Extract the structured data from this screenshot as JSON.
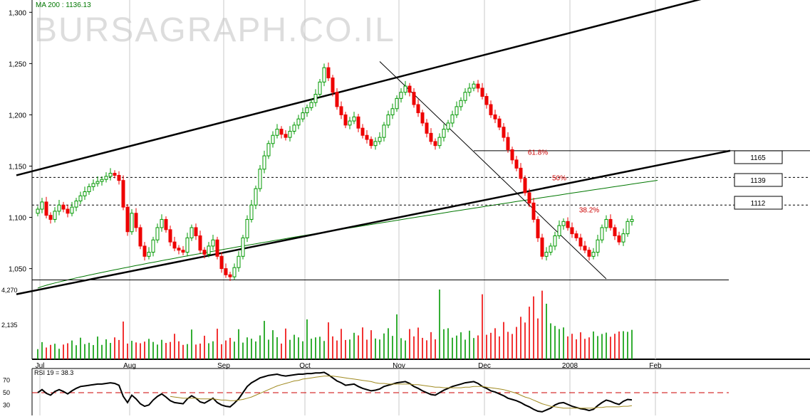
{
  "watermark": "BURSAGRAPH.CO.IL",
  "ma_label": "MA 200 : 1136.13",
  "volume_axis_labels": [
    "4,270",
    "2,135"
  ],
  "rsi_label": "RSI 19 = 38.3",
  "rsi_axis_labels": [
    "70",
    "50",
    "30"
  ],
  "fib_labels": [
    "61.8%",
    "50%",
    "38.2%"
  ],
  "level_boxes": [
    "1165",
    "1139",
    "1112"
  ],
  "colors": {
    "up": "#009900",
    "down": "#ee0000",
    "ma": "#007700",
    "grid": "#c8c8c8",
    "rsi_ma": "#a08a20",
    "rsi_mid": "#cc0000"
  },
  "chart_data": {
    "type": "candlestick",
    "y_axis_ticks": [
      1050,
      1100,
      1150,
      1200,
      1250,
      1300
    ],
    "y_tick_labels": [
      "1,050",
      "1,100",
      "1,150",
      "1,200",
      "1,250",
      "1,300"
    ],
    "ylim": [
      1031,
      1312
    ],
    "x_tick_labels": [
      "Jul",
      "Aug",
      "Sep",
      "Oct",
      "Nov",
      "Dec",
      "2008",
      "Feb"
    ],
    "month_start_index": [
      0,
      21,
      43,
      62,
      84,
      104,
      124,
      144
    ],
    "closes": [
      1108,
      1115,
      1102,
      1098,
      1106,
      1112,
      1108,
      1104,
      1110,
      1116,
      1121,
      1125,
      1130,
      1133,
      1135,
      1137,
      1140,
      1143,
      1141,
      1136,
      1110,
      1086,
      1104,
      1090,
      1072,
      1062,
      1066,
      1078,
      1090,
      1098,
      1088,
      1076,
      1070,
      1068,
      1066,
      1080,
      1090,
      1082,
      1068,
      1064,
      1072,
      1078,
      1062,
      1050,
      1044,
      1042,
      1051,
      1062,
      1080,
      1098,
      1112,
      1128,
      1147,
      1160,
      1172,
      1180,
      1186,
      1181,
      1178,
      1184,
      1190,
      1196,
      1202,
      1207,
      1212,
      1220,
      1232,
      1246,
      1236,
      1222,
      1208,
      1200,
      1190,
      1194,
      1198,
      1187,
      1180,
      1176,
      1170,
      1174,
      1178,
      1190,
      1200,
      1206,
      1216,
      1222,
      1228,
      1222,
      1210,
      1202,
      1192,
      1182,
      1174,
      1170,
      1178,
      1186,
      1192,
      1200,
      1208,
      1214,
      1222,
      1226,
      1230,
      1226,
      1218,
      1210,
      1200,
      1196,
      1188,
      1178,
      1166,
      1156,
      1148,
      1138,
      1124,
      1114,
      1098,
      1080,
      1062,
      1066,
      1072,
      1082,
      1092,
      1096,
      1090,
      1084,
      1080,
      1072,
      1068,
      1062,
      1066,
      1078,
      1090,
      1098,
      1090,
      1082,
      1076,
      1084,
      1096,
      1098
    ],
    "opens": [
      1104,
      1108,
      1115,
      1102,
      1098,
      1106,
      1112,
      1108,
      1104,
      1110,
      1116,
      1121,
      1125,
      1130,
      1133,
      1135,
      1137,
      1140,
      1143,
      1141,
      1136,
      1110,
      1086,
      1104,
      1090,
      1072,
      1062,
      1066,
      1078,
      1090,
      1098,
      1088,
      1076,
      1070,
      1068,
      1066,
      1080,
      1090,
      1082,
      1068,
      1064,
      1072,
      1078,
      1062,
      1050,
      1044,
      1042,
      1051,
      1062,
      1080,
      1098,
      1112,
      1128,
      1147,
      1160,
      1172,
      1180,
      1186,
      1181,
      1178,
      1184,
      1190,
      1196,
      1202,
      1207,
      1212,
      1220,
      1232,
      1246,
      1236,
      1222,
      1208,
      1200,
      1190,
      1194,
      1198,
      1187,
      1180,
      1176,
      1170,
      1174,
      1178,
      1190,
      1200,
      1206,
      1216,
      1222,
      1228,
      1222,
      1210,
      1202,
      1192,
      1182,
      1174,
      1170,
      1178,
      1186,
      1192,
      1200,
      1208,
      1214,
      1222,
      1226,
      1230,
      1226,
      1218,
      1210,
      1200,
      1196,
      1188,
      1178,
      1166,
      1156,
      1148,
      1138,
      1124,
      1114,
      1098,
      1080,
      1062,
      1066,
      1072,
      1082,
      1092,
      1096,
      1090,
      1084,
      1080,
      1072,
      1068,
      1062,
      1066,
      1078,
      1090,
      1098,
      1090,
      1082,
      1076,
      1084,
      1096
    ],
    "volume": [
      620,
      1050,
      720,
      880,
      950,
      640,
      900,
      980,
      1150,
      860,
      1320,
      930,
      1010,
      870,
      1390,
      880,
      1220,
      1000,
      1340,
      1180,
      2310,
      960,
      1130,
      1030,
      980,
      1080,
      1250,
      1060,
      900,
      1190,
      1000,
      1060,
      1560,
      1100,
      880,
      930,
      1820,
      900,
      960,
      1440,
      980,
      1100,
      1870,
      920,
      1150,
      1310,
      1080,
      1840,
      1020,
      1340,
      1260,
      1090,
      1460,
      2350,
      1200,
      1780,
      1350,
      960,
      1880,
      1190,
      1500,
      1340,
      1100,
      2440,
      1260,
      1340,
      1380,
      1120,
      2260,
      1400,
      1150,
      1860,
      1180,
      1210,
      1620,
      1460,
      1950,
      1200,
      1780,
      1270,
      1210,
      1580,
      1900,
      1430,
      2750,
      1290,
      1150,
      1850,
      1400,
      1940,
      1310,
      1160,
      1660,
      1220,
      4270,
      1840,
      1900,
      1320,
      1450,
      1650,
      1200,
      1750,
      1300,
      1460,
      3980,
      1500,
      1620,
      1900,
      1400,
      2280,
      1680,
      1550,
      1980,
      2600,
      2250,
      3220,
      3850,
      2500,
      4200,
      3400,
      2200,
      2040,
      1850,
      1950,
      1400,
      1560,
      1220,
      1650,
      1250,
      1340,
      1700,
      1420,
      1550,
      1630,
      1380,
      1560,
      1700,
      1720,
      1680,
      1800
    ],
    "ma200_endpoints": [
      [
        0,
        1031
      ],
      [
        145,
        1136.13
      ]
    ],
    "trendlines": [
      {
        "from": [
          -5,
          1141
        ],
        "to": [
          160,
          1318
        ]
      },
      {
        "from": [
          -5,
          1025
        ],
        "to": [
          162,
          1165
        ]
      },
      {
        "from": [
          80,
          1252
        ],
        "to": [
          133,
          1040
        ]
      }
    ],
    "horizontal_levels": [
      1165,
      1139,
      1112,
      1039
    ],
    "rsi_values": [
      50,
      55,
      49,
      46,
      52,
      55,
      52,
      48,
      53,
      57,
      60,
      61,
      62,
      63,
      64,
      64,
      65,
      66,
      65,
      62,
      44,
      34,
      46,
      40,
      32,
      28,
      30,
      38,
      44,
      48,
      43,
      37,
      34,
      33,
      32,
      40,
      45,
      41,
      35,
      33,
      37,
      41,
      34,
      30,
      28,
      27,
      33,
      40,
      50,
      60,
      66,
      70,
      74,
      76,
      78,
      79,
      80,
      78,
      77,
      78,
      79,
      80,
      80,
      81,
      81,
      82,
      82,
      83,
      79,
      74,
      69,
      66,
      62,
      63,
      64,
      60,
      57,
      55,
      53,
      54,
      56,
      60,
      62,
      64,
      66,
      67,
      68,
      65,
      60,
      57,
      53,
      50,
      47,
      46,
      50,
      54,
      57,
      60,
      62,
      64,
      66,
      67,
      68,
      65,
      60,
      57,
      53,
      51,
      48,
      45,
      41,
      39,
      37,
      34,
      30,
      27,
      23,
      20,
      19,
      22,
      25,
      30,
      33,
      34,
      31,
      28,
      26,
      24,
      23,
      21,
      23,
      29,
      34,
      38,
      36,
      33,
      31,
      36,
      39,
      38.3
    ],
    "rsi_ma_values": [
      45,
      46,
      47,
      48,
      49,
      50,
      51,
      52,
      52,
      53,
      54,
      54,
      55,
      55,
      56,
      56,
      57,
      57,
      57,
      57,
      56,
      54,
      53,
      52,
      50,
      48,
      47,
      46,
      46,
      45,
      45,
      44,
      43,
      42,
      41,
      41,
      41,
      41,
      40,
      40,
      40,
      40,
      39,
      38,
      38,
      37,
      37,
      38,
      39,
      41,
      43,
      46,
      49,
      52,
      55,
      58,
      61,
      63,
      65,
      67,
      69,
      70,
      72,
      73,
      74,
      75,
      76,
      77,
      77,
      77,
      76,
      75,
      74,
      73,
      72,
      71,
      70,
      69,
      68,
      66,
      65,
      65,
      64,
      64,
      64,
      64,
      64,
      64,
      63,
      63,
      62,
      61,
      60,
      59,
      59,
      58,
      58,
      58,
      58,
      58,
      59,
      59,
      60,
      60,
      60,
      59,
      58,
      57,
      56,
      55,
      53,
      51,
      49,
      46,
      43,
      41,
      38,
      35,
      32,
      30,
      28,
      27,
      26,
      25,
      25,
      25,
      25,
      25,
      25,
      25,
      25,
      26,
      26,
      27,
      27,
      27,
      27,
      28,
      28,
      29
    ]
  }
}
